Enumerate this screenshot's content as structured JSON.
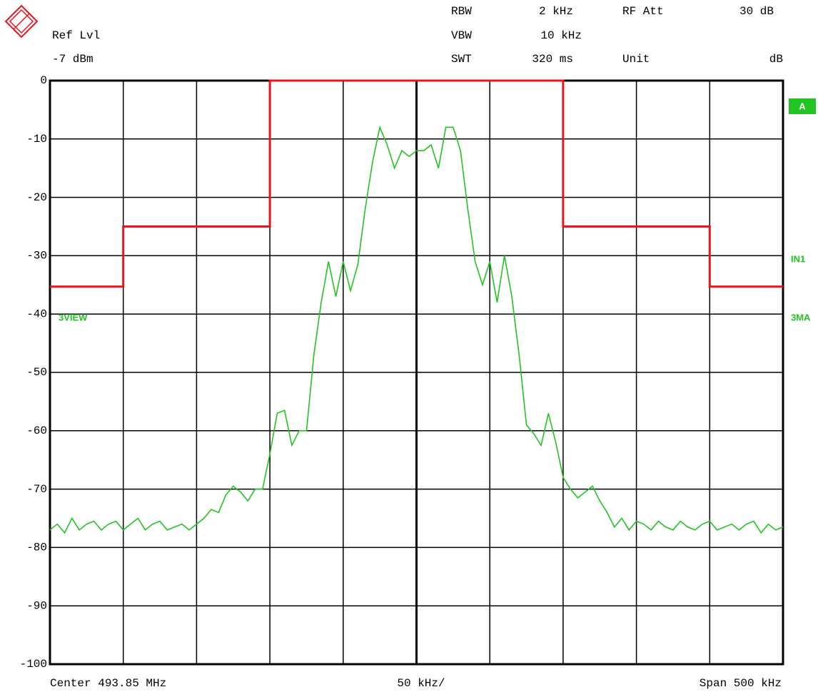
{
  "chart_data": {
    "type": "line",
    "header": {
      "ref_lvl": "Ref Lvl",
      "ref_lvl_value": "-7 dBm",
      "rbw": "RBW",
      "rbw_value": "2 kHz",
      "vbw": "VBW",
      "vbw_value": "10 kHz",
      "swt": "SWT",
      "swt_value": "320 ms",
      "rf_att": "RF Att",
      "rf_att_value": "30 dB",
      "unit": "Unit",
      "unit_value": "dB"
    },
    "footer": {
      "center": "Center 493.85 MHz",
      "per_div": "50 kHz/",
      "span": "Span 500 kHz"
    },
    "side_labels": {
      "trace": "A",
      "input": "IN1",
      "detector": "3MA",
      "view": "3VIEW"
    },
    "xlim": [
      493.6,
      494.1
    ],
    "xticks": [
      493.6,
      493.65,
      493.7,
      493.75,
      493.8,
      493.85,
      493.9,
      493.95,
      494.0,
      494.05,
      494.1
    ],
    "ylim": [
      -100,
      0
    ],
    "yticks": [
      0,
      -10,
      -20,
      -30,
      -40,
      -50,
      -60,
      -70,
      -80,
      -90,
      -100
    ],
    "grid": true,
    "series": [
      {
        "color": "#e8141c",
        "x": [
          493.6,
          493.65,
          493.65,
          493.75,
          493.75,
          493.95,
          493.95,
          494.05,
          494.05,
          494.1
        ],
        "values": [
          -35.3,
          -35.3,
          -25,
          -25,
          0,
          0,
          -25,
          -25,
          -35.3,
          -35.3
        ]
      },
      {
        "color": "#22c422",
        "x": [
          493.6,
          493.605,
          493.61,
          493.615,
          493.62,
          493.625,
          493.63,
          493.635,
          493.64,
          493.645,
          493.65,
          493.655,
          493.66,
          493.665,
          493.67,
          493.675,
          493.68,
          493.685,
          493.69,
          493.695,
          493.7,
          493.705,
          493.71,
          493.715,
          493.72,
          493.725,
          493.73,
          493.735,
          493.74,
          493.745,
          493.75,
          493.755,
          493.76,
          493.765,
          493.77,
          493.775,
          493.78,
          493.785,
          493.79,
          493.795,
          493.8,
          493.805,
          493.81,
          493.815,
          493.82,
          493.825,
          493.83,
          493.835,
          493.84,
          493.845,
          493.85,
          493.855,
          493.86,
          493.865,
          493.87,
          493.875,
          493.88,
          493.885,
          493.89,
          493.895,
          493.9,
          493.905,
          493.91,
          493.915,
          493.92,
          493.925,
          493.93,
          493.935,
          493.94,
          493.945,
          493.95,
          493.955,
          493.96,
          493.965,
          493.97,
          493.975,
          493.98,
          493.985,
          493.99,
          493.995,
          494.0,
          494.005,
          494.01,
          494.015,
          494.02,
          494.025,
          494.03,
          494.035,
          494.04,
          494.045,
          494.05,
          494.055,
          494.06,
          494.065,
          494.07,
          494.075,
          494.08,
          494.085,
          494.09,
          494.095,
          494.1
        ],
        "values": [
          -77,
          -76,
          -77.5,
          -75,
          -77,
          -76,
          -75.5,
          -77,
          -76,
          -75.5,
          -77,
          -76,
          -75,
          -77,
          -76,
          -75.5,
          -77,
          -76.5,
          -76,
          -77,
          -76,
          -75,
          -73.5,
          -74,
          -71,
          -69.5,
          -70.5,
          -72,
          -70,
          -70,
          -64,
          -57,
          -56.5,
          -62.5,
          -60,
          -60,
          -47,
          -38,
          -31,
          -37,
          -31,
          -36,
          -31.5,
          -22,
          -14,
          -8,
          -11,
          -15,
          -12,
          -13,
          -12,
          -12,
          -11,
          -15,
          -8,
          -8,
          -12,
          -22,
          -31,
          -35,
          -31,
          -38,
          -30,
          -37,
          -47,
          -59,
          -60.5,
          -62.5,
          -57,
          -62,
          -68,
          -70,
          -71.5,
          -70.5,
          -69.5,
          -72,
          -74,
          -76.5,
          -75,
          -77,
          -75.5,
          -76,
          -77,
          -75.5,
          -76.5,
          -77,
          -75.5,
          -76.5,
          -77,
          -76,
          -75.5,
          -77,
          -76.5,
          -76,
          -77,
          -76,
          -75.5,
          -77.5,
          -76,
          -77,
          -76.5
        ]
      }
    ]
  }
}
